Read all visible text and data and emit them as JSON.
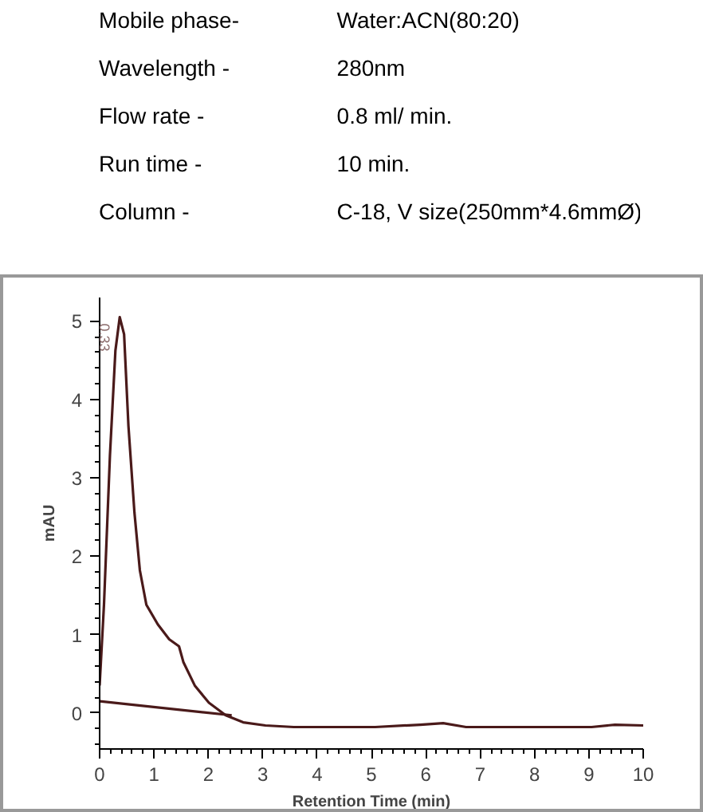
{
  "chart_data": {
    "type": "line",
    "xlabel": "Retention Time (min)",
    "ylabel": "mAU",
    "annotations": [
      "Mobile phase-",
      "Water:ACN(80:20)",
      "Wavelength  -",
      "280nm",
      "Flow rate      -",
      "0.8 ml/ min.",
      "Run time       -",
      "10 min.",
      "Column         -",
      "C-18, V size(250mm*4.6mmØ)",
      {
        "text": "0.33",
        "x": 0.33,
        "y": 5.05
      }
    ],
    "series": [
      {
        "color": "#4a1a1a",
        "x": [
          0,
          0.08,
          0.19,
          0.29,
          0.37,
          0.45,
          0.53,
          0.64,
          0.74,
          0.86,
          1.07,
          1.28,
          1.46,
          1.54,
          1.75,
          2.01,
          2.32,
          2.64,
          3.05,
          3.57,
          4.1,
          4.7,
          5.07,
          5.9,
          6.32,
          6.74,
          8.2,
          9.05,
          9.48,
          10
        ],
        "values": [
          0.35,
          1.38,
          3.29,
          4.62,
          5.05,
          4.83,
          3.66,
          2.56,
          1.82,
          1.38,
          1.13,
          0.94,
          0.85,
          0.65,
          0.35,
          0.13,
          -0.03,
          -0.12,
          -0.16,
          -0.18,
          -0.18,
          -0.18,
          -0.18,
          -0.15,
          -0.13,
          -0.18,
          -0.18,
          -0.18,
          -0.15,
          -0.16
        ]
      },
      {
        "color": "#4a1a1a",
        "x": [
          0,
          2.43
        ],
        "values": [
          0.15,
          -0.03
        ]
      }
    ],
    "xlim": [
      0,
      10
    ],
    "ylim": [
      -0.46,
      5.3
    ],
    "xticks": [
      0,
      1,
      2,
      3,
      4,
      5,
      6,
      7,
      8,
      9,
      10
    ],
    "yticks": [
      0,
      1,
      2,
      3,
      4,
      5
    ],
    "grid": false,
    "marker": "none",
    "line_style": "solid"
  }
}
